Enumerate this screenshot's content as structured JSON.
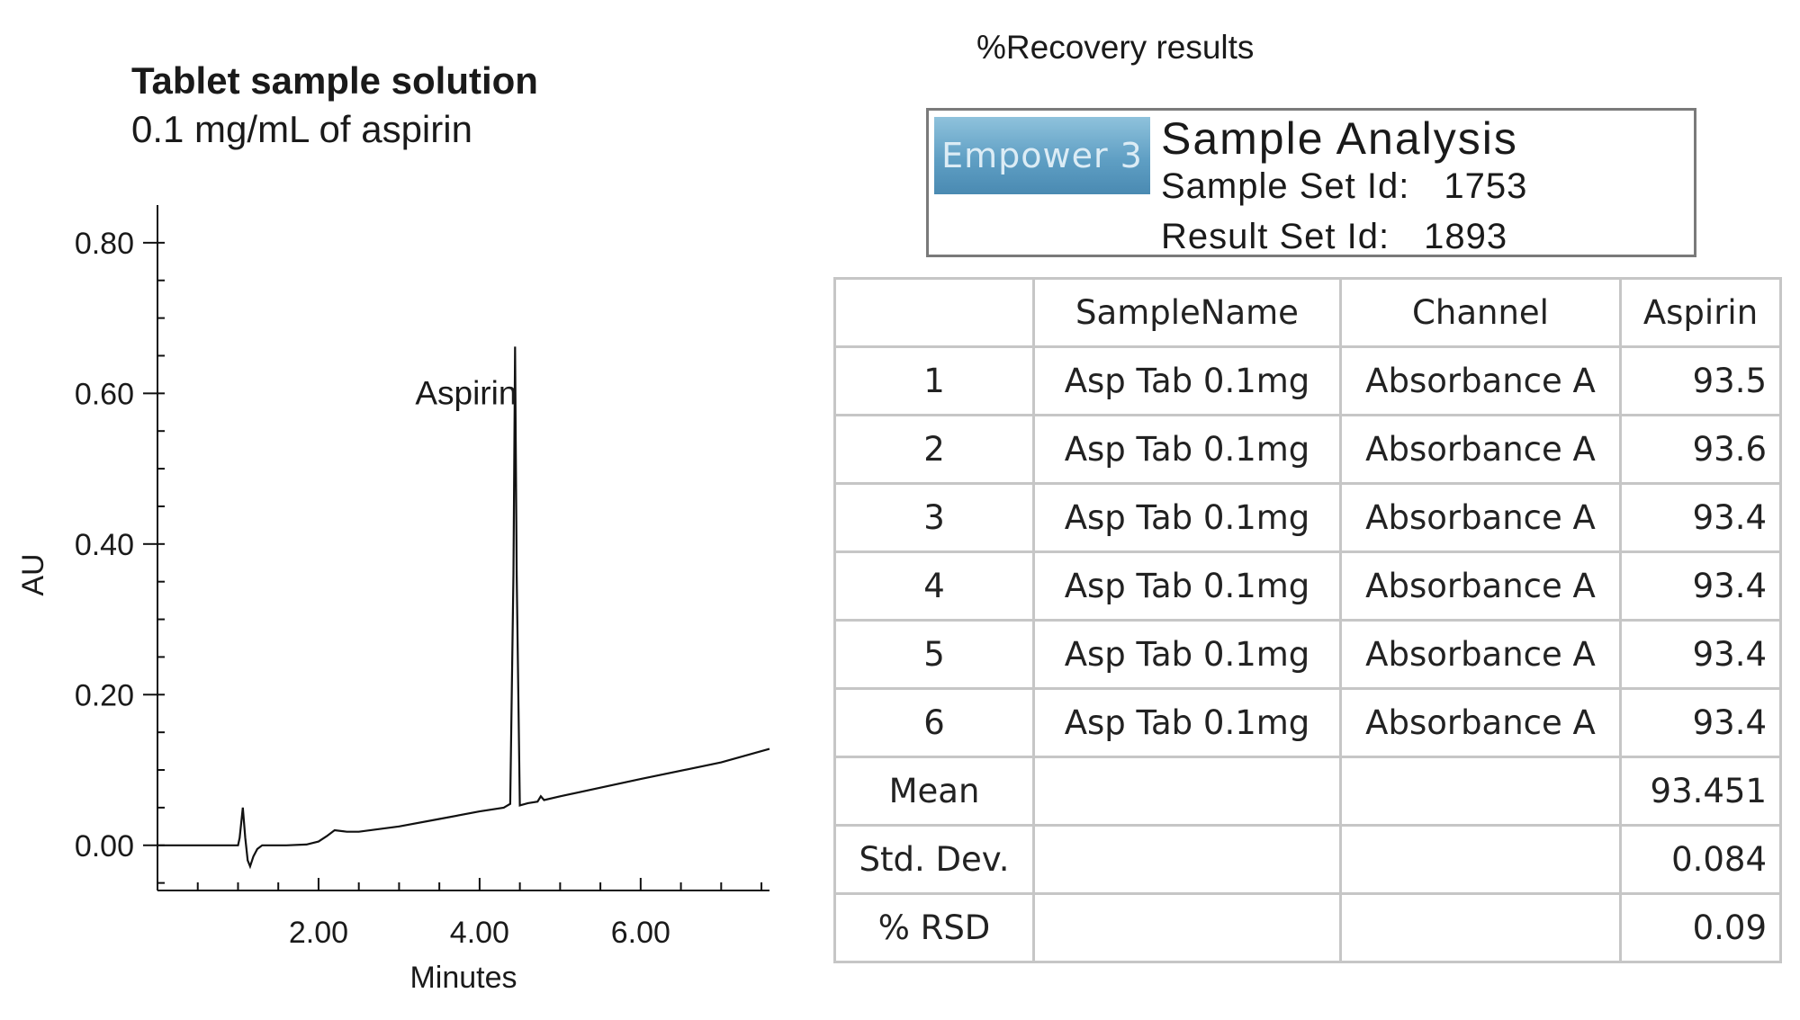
{
  "chart_data": {
    "type": "line",
    "title": "Tablet sample solution",
    "subtitle": "0.1 mg/mL of aspirin",
    "xlabel": "Minutes",
    "ylabel": "AU",
    "xlim": [
      0.0,
      7.6
    ],
    "ylim": [
      -0.06,
      0.85
    ],
    "x_ticks": [
      2.0,
      4.0,
      6.0
    ],
    "x_tick_labels": [
      "2.00",
      "4.00",
      "6.00"
    ],
    "y_ticks": [
      0.0,
      0.2,
      0.4,
      0.6,
      0.8
    ],
    "y_tick_labels": [
      "0.00",
      "0.20",
      "0.40",
      "0.60",
      "0.80"
    ],
    "grid": false,
    "annotations": [
      {
        "text": "Aspirin",
        "x": 3.2,
        "y": 0.6
      }
    ],
    "series": [
      {
        "x": [
          0.0,
          1.0,
          1.02,
          1.06,
          1.09,
          1.12,
          1.15,
          1.19,
          1.24,
          1.3,
          1.4,
          1.6,
          1.85,
          2.0,
          2.1,
          2.2,
          2.35,
          2.5,
          3.0,
          3.5,
          4.0,
          4.3,
          4.38,
          4.42,
          4.44,
          4.46,
          4.5,
          4.6,
          4.72,
          4.76,
          4.8,
          5.0,
          6.0,
          7.0,
          7.6
        ],
        "y": [
          0.0,
          0.0,
          0.01,
          0.05,
          0.01,
          -0.02,
          -0.028,
          -0.015,
          -0.005,
          0.0,
          0.0,
          0.0,
          0.001,
          0.005,
          0.012,
          0.02,
          0.018,
          0.018,
          0.025,
          0.035,
          0.045,
          0.05,
          0.055,
          0.36,
          0.662,
          0.36,
          0.053,
          0.056,
          0.058,
          0.065,
          0.06,
          0.065,
          0.088,
          0.11,
          0.128
        ]
      }
    ]
  },
  "recovery": {
    "title": "%Recovery results",
    "logo_text": "Empower 3",
    "heading": "Sample Analysis",
    "sample_set_label": "Sample Set Id:",
    "sample_set_value": "1753",
    "result_set_label": "Result Set Id:",
    "result_set_value": "1893"
  },
  "table": {
    "headers": [
      "",
      "SampleName",
      "Channel",
      "Aspirin"
    ],
    "rows": [
      [
        "1",
        "Asp Tab 0.1mg",
        "Absorbance A",
        "93.5"
      ],
      [
        "2",
        "Asp Tab 0.1mg",
        "Absorbance A",
        "93.6"
      ],
      [
        "3",
        "Asp Tab 0.1mg",
        "Absorbance A",
        "93.4"
      ],
      [
        "4",
        "Asp Tab 0.1mg",
        "Absorbance A",
        "93.4"
      ],
      [
        "5",
        "Asp Tab 0.1mg",
        "Absorbance A",
        "93.4"
      ],
      [
        "6",
        "Asp Tab 0.1mg",
        "Absorbance A",
        "93.4"
      ],
      [
        "Mean",
        "",
        "",
        "93.451"
      ],
      [
        "Std. Dev.",
        "",
        "",
        "0.084"
      ],
      [
        "% RSD",
        "",
        "",
        "0.09"
      ]
    ]
  }
}
